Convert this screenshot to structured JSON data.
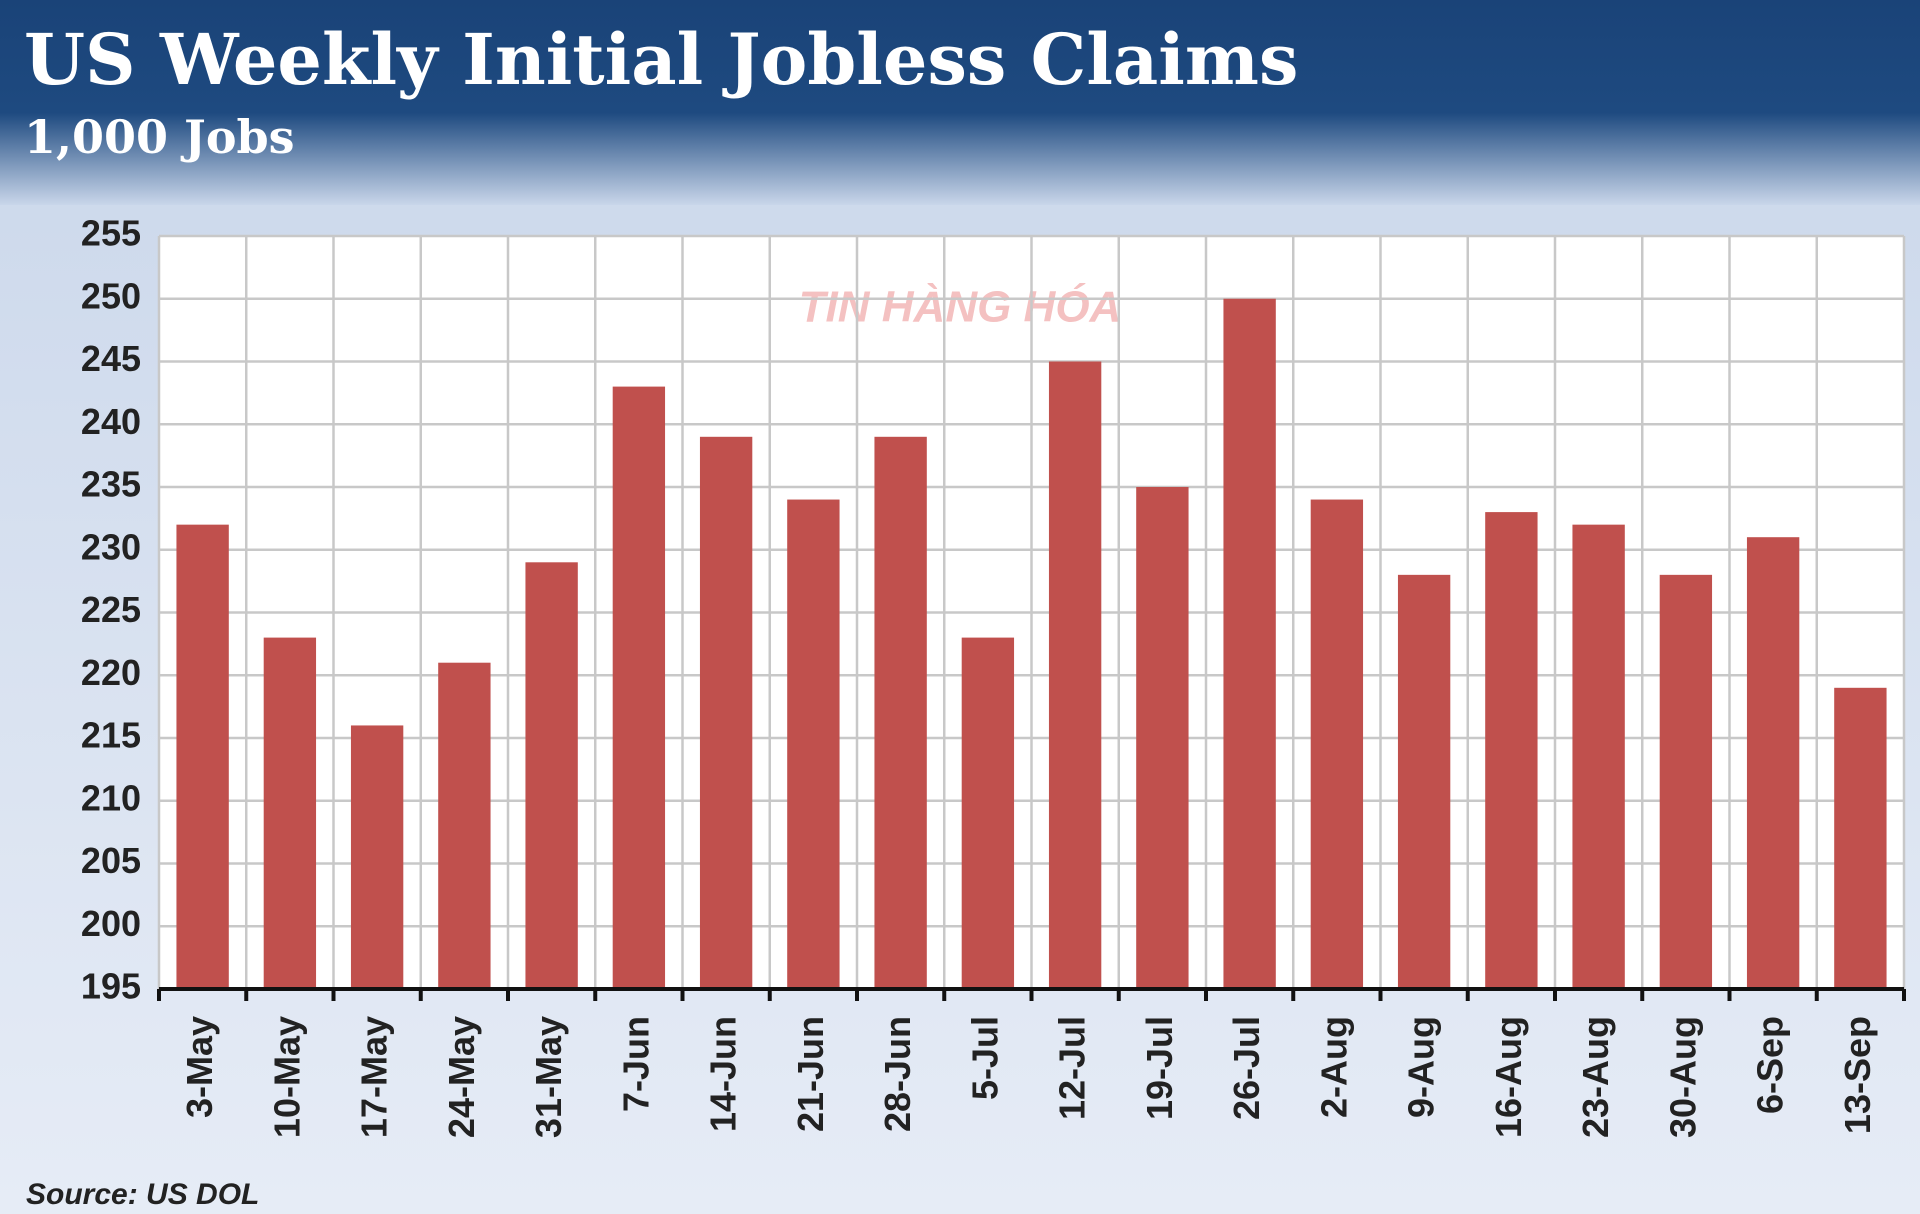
{
  "chart_data": {
    "type": "bar",
    "title": "US Weekly Initial Jobless Claims",
    "subtitle": "1,000 Jobs",
    "source": "Source: US DOL",
    "watermark": "TIN HÀNG HÓA",
    "categories": [
      "3-May",
      "10-May",
      "17-May",
      "24-May",
      "31-May",
      "7-Jun",
      "14-Jun",
      "21-Jun",
      "28-Jun",
      "5-Jul",
      "12-Jul",
      "19-Jul",
      "26-Jul",
      "2-Aug",
      "9-Aug",
      "16-Aug",
      "23-Aug",
      "30-Aug",
      "6-Sep",
      "13-Sep"
    ],
    "values": [
      232,
      223,
      216,
      221,
      229,
      243,
      239,
      234,
      239,
      223,
      245,
      235,
      250,
      234,
      228,
      233,
      232,
      228,
      231,
      219
    ],
    "color": "#c0504d",
    "ylim": [
      195,
      255
    ],
    "yticks": [
      195,
      200,
      205,
      210,
      215,
      220,
      225,
      230,
      235,
      240,
      245,
      250,
      255
    ],
    "grid": true
  }
}
